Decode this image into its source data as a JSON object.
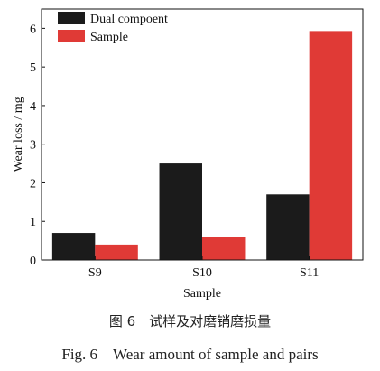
{
  "chart_data": {
    "type": "bar",
    "categories": [
      "S9",
      "S10",
      "S11"
    ],
    "series": [
      {
        "name": "Dual compoent",
        "values": [
          0.7,
          2.5,
          1.7
        ],
        "color": "#1b1b1b"
      },
      {
        "name": "Sample",
        "values": [
          0.4,
          0.6,
          5.93
        ],
        "color": "#e03a36"
      }
    ],
    "xlabel": "Sample",
    "ylabel": "Wear loss / mg",
    "ylim": [
      0,
      6.5
    ],
    "yticks": [
      0,
      1,
      2,
      3,
      4,
      5,
      6
    ],
    "legend_position": "top-left",
    "grid": false
  },
  "caption": {
    "cn": "图 6　试样及对磨销磨损量",
    "en": "Fig. 6　Wear amount of sample and pairs"
  }
}
